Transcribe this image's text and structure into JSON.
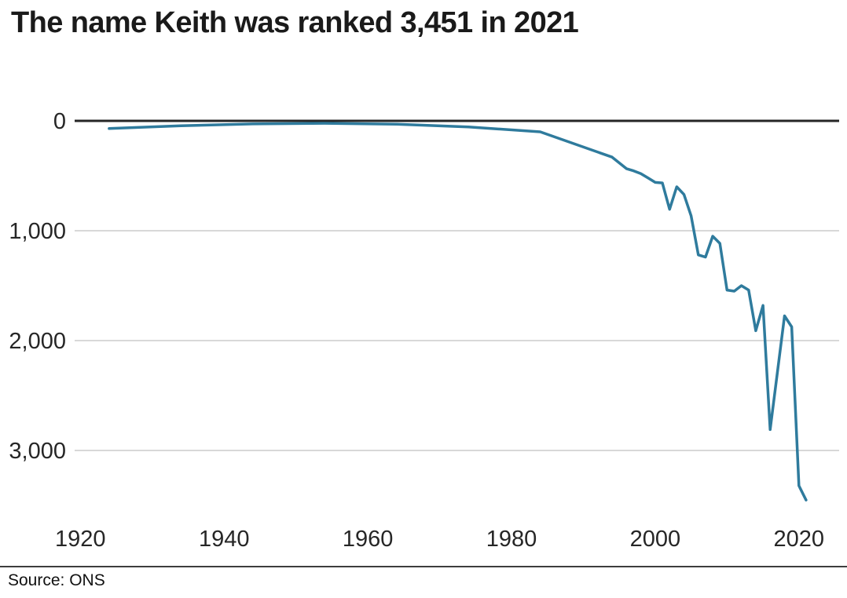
{
  "title": "The name Keith was ranked 3,451 in 2021",
  "source": "Source: ONS",
  "colors": {
    "line": "#2f7b9d",
    "zero_axis": "#262626",
    "gridline": "#cccccc",
    "tick_text": "#262626",
    "title_text": "#1a1a1a",
    "divider": "#3d3d3d",
    "background": "#ffffff"
  },
  "chart_data": {
    "type": "line",
    "title": "The name Keith was ranked 3,451 in 2021",
    "xlabel": "",
    "ylabel": "",
    "legend": "none",
    "grid": "horizontal-only",
    "x": [
      1924,
      1934,
      1944,
      1954,
      1964,
      1974,
      1984,
      1994,
      1996,
      1997,
      1998,
      1999,
      2000,
      2001,
      2002,
      2003,
      2004,
      2005,
      2006,
      2007,
      2008,
      2009,
      2010,
      2011,
      2012,
      2013,
      2014,
      2015,
      2016,
      2017,
      2018,
      2019,
      2020,
      2021
    ],
    "y": [
      70,
      45,
      28,
      22,
      30,
      55,
      100,
      330,
      435,
      455,
      480,
      520,
      560,
      565,
      805,
      600,
      670,
      865,
      1220,
      1240,
      1050,
      1115,
      1540,
      1550,
      1500,
      1540,
      1910,
      1680,
      2810,
      2290,
      1775,
      1875,
      3320,
      3451
    ],
    "x_ticks": {
      "values": [
        1920,
        1940,
        1960,
        1980,
        2000,
        2020
      ],
      "labels": [
        "1920",
        "1940",
        "1960",
        "1980",
        "2000",
        "2020"
      ]
    },
    "y_ticks": {
      "values": [
        0,
        1000,
        2000,
        3000
      ],
      "labels": [
        "0",
        "1,000",
        "2,000",
        "3,000"
      ]
    },
    "axis": {
      "x_range": [
        1919.2,
        2025.6
      ],
      "y_range": [
        0,
        3571
      ],
      "y_inverted": true
    }
  }
}
